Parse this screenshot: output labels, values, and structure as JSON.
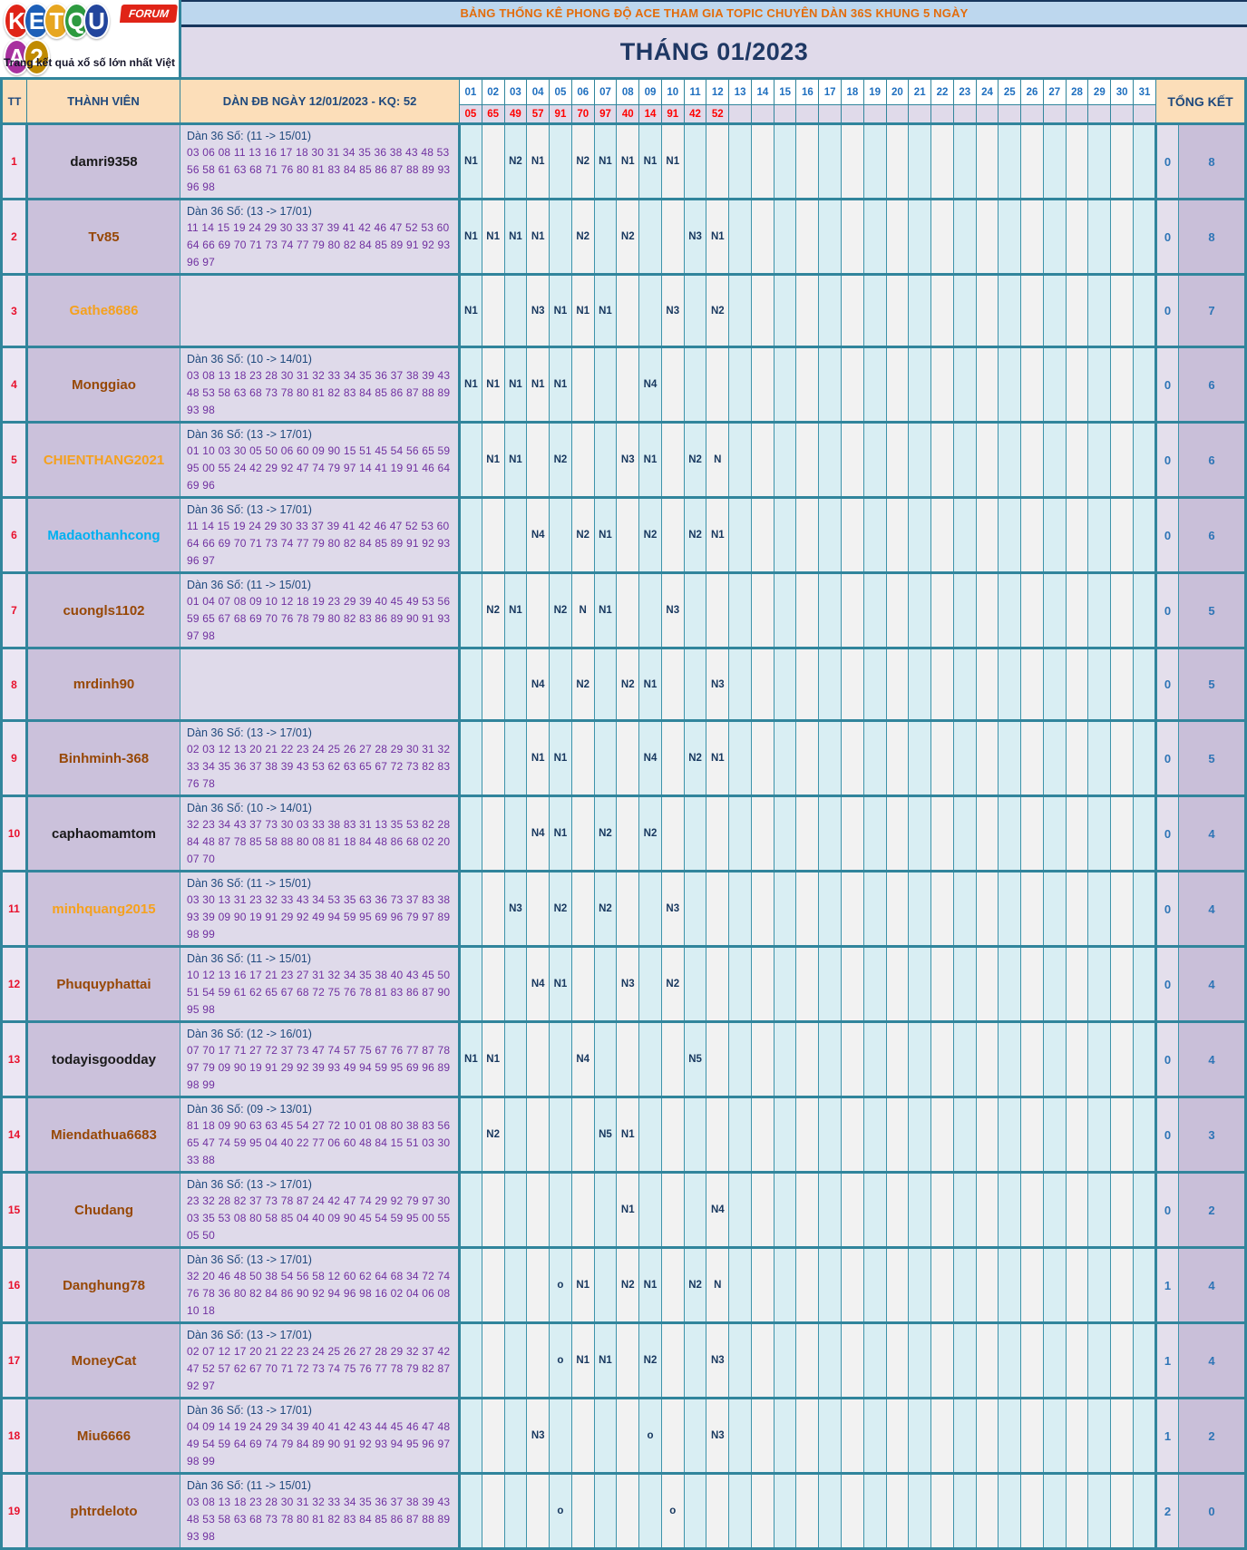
{
  "logo": {
    "letters": [
      {
        "ch": "K",
        "bg": "#e02417"
      },
      {
        "ch": "E",
        "bg": "#1d5fb8"
      },
      {
        "ch": "T",
        "bg": "#e7a620"
      },
      {
        "ch": "Q",
        "bg": "#2d9a3f"
      },
      {
        "ch": "U",
        "bg": "#23459c"
      },
      {
        "ch": "A",
        "bg": "#a8309f"
      },
      {
        "ch": "2",
        "bg": "#c08a00"
      }
    ],
    "forum": "FORUM",
    "tagline": "Trang kết quả xổ số lớn nhất Việt Nam"
  },
  "header": {
    "banner": "BẢNG THỐNG KÊ PHONG ĐỘ ACE THAM GIA TOPIC CHUYÊN DÀN 36S KHUNG 5 NGÀY",
    "month_title": "THÁNG 01/2023"
  },
  "colors": {
    "border_teal": "#31859C",
    "banner_bg": "#BDD7EE",
    "banner_text": "#E36C0A",
    "month_bg": "#E0DAEA",
    "month_text": "#1F3864",
    "header_peach": "#FCDEB9",
    "day_odd_bg": "#D9EEF3",
    "day_even_bg": "#F2F2F2",
    "result_red": "#FF0000",
    "mark_navy": "#17375E",
    "dan_purple": "#7030A0",
    "summary_blue": "#2E75B6"
  },
  "table": {
    "tt_header": "TT",
    "member_header": "THÀNH VIÊN",
    "dan_header": "DÀN ĐB NGÀY 12/01/2023 - KQ: 52",
    "summary_header": "TỔNG KẾT",
    "days": [
      "01",
      "02",
      "03",
      "04",
      "05",
      "06",
      "07",
      "08",
      "09",
      "10",
      "11",
      "12",
      "13",
      "14",
      "15",
      "16",
      "17",
      "18",
      "19",
      "20",
      "21",
      "22",
      "23",
      "24",
      "25",
      "26",
      "27",
      "28",
      "29",
      "30",
      "31"
    ],
    "day_results": [
      "05",
      "65",
      "49",
      "57",
      "91",
      "70",
      "97",
      "40",
      "14",
      "91",
      "42",
      "52"
    ],
    "rows": [
      {
        "tt": "1",
        "member": "damri9358",
        "member_color": "#1a1a1a",
        "dan_title": "Dàn 36 Số: (11 -> 15/01)",
        "dan_numbers": "03 06 08 11 13 16 17 18 30 31 34 35 36 38 43 48 53 56 58 61 63 68 71 76 80 81 83 84 85 86 87 88 89 93 96 98",
        "marks": {
          "1": "N1",
          "3": "N2",
          "4": "N1",
          "6": "N2",
          "7": "N1",
          "8": "N1",
          "9": "N1",
          "10": "N1"
        },
        "summary": [
          "0",
          "8"
        ]
      },
      {
        "tt": "2",
        "member": "Tv85",
        "member_color": "#974806",
        "dan_title": "Dàn 36 Số: (13 -> 17/01)",
        "dan_numbers": "11 14 15 19 24 29 30 33 37 39 41 42 46 47 52 53 60 64 66 69 70 71 73 74 77 79 80 82 84 85 89 91 92 93 96 97",
        "marks": {
          "1": "N1",
          "2": "N1",
          "3": "N1",
          "4": "N1",
          "6": "N2",
          "8": "N2",
          "11": "N3",
          "12": "N1"
        },
        "summary": [
          "0",
          "8"
        ]
      },
      {
        "tt": "3",
        "member": "Gathe8686",
        "member_color": "#F5A11D",
        "dan_title": "",
        "dan_numbers": "",
        "marks": {
          "1": "N1",
          "4": "N3",
          "5": "N1",
          "6": "N1",
          "7": "N1",
          "10": "N3",
          "12": "N2"
        },
        "summary": [
          "0",
          "7"
        ]
      },
      {
        "tt": "4",
        "member": "Monggiao",
        "member_color": "#974806",
        "dan_title": "Dàn 36 Số: (10 -> 14/01)",
        "dan_numbers": "03 08 13 18 23 28 30 31 32 33 34 35 36 37 38 39 43 48 53 58 63 68 73 78 80 81 82 83 84 85 86 87 88 89 93 98",
        "marks": {
          "1": "N1",
          "2": "N1",
          "3": "N1",
          "4": "N1",
          "5": "N1",
          "9": "N4"
        },
        "summary": [
          "0",
          "6"
        ]
      },
      {
        "tt": "5",
        "member": "CHIENTHANG2021",
        "member_color": "#F5A11D",
        "dan_title": "Dàn 36 Số: (13 -> 17/01)",
        "dan_numbers": "01 10 03 30 05 50 06 60 09 90 15 51 45 54 56 65 59 95 00 55 24 42 29 92 47 74 79 97 14 41 19 91 46 64 69 96",
        "marks": {
          "2": "N1",
          "3": "N1",
          "5": "N2",
          "8": "N3",
          "9": "N1",
          "11": "N2",
          "12": "N"
        },
        "summary": [
          "0",
          "6"
        ]
      },
      {
        "tt": "6",
        "member": "Madaothanhcong",
        "member_color": "#00B0F0",
        "dan_title": "Dàn 36 Số: (13 -> 17/01)",
        "dan_numbers": "11 14 15 19 24 29 30 33 37 39 41 42 46 47 52 53 60 64 66 69 70 71 73 74 77 79 80 82 84 85 89 91 92 93 96 97",
        "marks": {
          "4": "N4",
          "6": "N2",
          "7": "N1",
          "9": "N2",
          "11": "N2",
          "12": "N1"
        },
        "summary": [
          "0",
          "6"
        ]
      },
      {
        "tt": "7",
        "member": "cuongls1102",
        "member_color": "#974806",
        "dan_title": "Dàn 36 Số: (11 -> 15/01)",
        "dan_numbers": "01 04 07 08 09 10 12 18 19 23 29 39 40 45 49 53 56 59 65 67 68 69 70 76 78 79 80 82 83 86 89 90 91 93 97 98",
        "marks": {
          "2": "N2",
          "3": "N1",
          "5": "N2",
          "6": "N",
          "7": "N1",
          "10": "N3"
        },
        "summary": [
          "0",
          "5"
        ]
      },
      {
        "tt": "8",
        "member": "mrdinh90",
        "member_color": "#974806",
        "dan_title": "",
        "dan_numbers": "",
        "marks": {
          "4": "N4",
          "6": "N2",
          "8": "N2",
          "9": "N1",
          "12": "N3"
        },
        "summary": [
          "0",
          "5"
        ]
      },
      {
        "tt": "9",
        "member": "Binhminh-368",
        "member_color": "#974806",
        "dan_title": "Dàn 36 Số: (13 -> 17/01)",
        "dan_numbers": "02 03 12 13 20 21 22 23 24 25 26 27 28 29 30 31 32 33 34 35 36 37 38 39 43 53 62 63 65 67 72 73 82 83 76 78",
        "marks": {
          "4": "N1",
          "5": "N1",
          "9": "N4",
          "11": "N2",
          "12": "N1"
        },
        "summary": [
          "0",
          "5"
        ]
      },
      {
        "tt": "10",
        "member": "caphaomamtom",
        "member_color": "#1a1a1a",
        "dan_title": "Dàn 36 Số: (10 -> 14/01)",
        "dan_numbers": "32 23 34 43 37 73 30 03 33 38 83 31 13 35 53 82 28 84 48 87 78 85 58 88 80 08 81 18 84 48 86 68 02 20 07 70",
        "marks": {
          "4": "N4",
          "5": "N1",
          "7": "N2",
          "9": "N2"
        },
        "summary": [
          "0",
          "4"
        ]
      },
      {
        "tt": "11",
        "member": "minhquang2015",
        "member_color": "#F5A11D",
        "dan_title": "Dàn 36 Số: (11 -> 15/01)",
        "dan_numbers": "03 30 13 31 23 32 33 43 34 53 35 63 36 73 37 83 38 93 39 09 90 19 91 29 92 49 94 59 95 69 96 79 97 89 98 99",
        "marks": {
          "3": "N3",
          "5": "N2",
          "7": "N2",
          "10": "N3"
        },
        "summary": [
          "0",
          "4"
        ]
      },
      {
        "tt": "12",
        "member": "Phuquyphattai",
        "member_color": "#974806",
        "dan_title": "Dàn 36 Số: (11 -> 15/01)",
        "dan_numbers": "10 12 13 16 17 21 23 27 31 32 34 35 38 40 43 45 50 51 54 59 61 62 65 67 68 72 75 76 78 81 83 86 87 90 95 98",
        "marks": {
          "4": "N4",
          "5": "N1",
          "8": "N3",
          "10": "N2"
        },
        "summary": [
          "0",
          "4"
        ]
      },
      {
        "tt": "13",
        "member": "todayisgoodday",
        "member_color": "#1a1a1a",
        "dan_title": "Dàn 36 Số: (12 -> 16/01)",
        "dan_numbers": "07 70 17 71 27 72 37 73 47 74 57 75 67 76 77 87 78 97 79 09 90 19 91 29 92 39 93 49 94 59 95 69 96 89 98 99",
        "marks": {
          "1": "N1",
          "2": "N1",
          "6": "N4",
          "11": "N5"
        },
        "summary": [
          "0",
          "4"
        ]
      },
      {
        "tt": "14",
        "member": "Miendathua6683",
        "member_color": "#974806",
        "dan_title": "Dàn 36 Số: (09 -> 13/01)",
        "dan_numbers": "81 18 09 90 63 63 45 54 27 72 10 01 08 80 38 83 56 65 47 74 59 95 04 40 22 77 06 60 48 84 15 51 03 30 33 88",
        "marks": {
          "2": "N2",
          "7": "N5",
          "8": "N1"
        },
        "summary": [
          "0",
          "3"
        ]
      },
      {
        "tt": "15",
        "member": "Chudang",
        "member_color": "#974806",
        "dan_title": "Dàn 36 Số: (13 -> 17/01)",
        "dan_numbers": "23 32 28 82 37 73 78 87 24 42 47 74 29 92 79 97 30 03 35 53 08 80 58 85 04 40 09 90 45 54 59 95 00 55 05 50",
        "marks": {
          "8": "N1",
          "12": "N4"
        },
        "summary": [
          "0",
          "2"
        ]
      },
      {
        "tt": "16",
        "member": "Danghung78",
        "member_color": "#974806",
        "dan_title": "Dàn 36 Số: (13 -> 17/01)",
        "dan_numbers": "32 20 46 48 50 38 54 56 58 12 60 62 64 68 34 72 74 76 78 36 80 82 84 86 90 92 94 96 98 16 02 04 06 08 10 18",
        "marks": {
          "5": "o",
          "6": "N1",
          "8": "N2",
          "9": "N1",
          "11": "N2",
          "12": "N"
        },
        "summary": [
          "1",
          "4"
        ]
      },
      {
        "tt": "17",
        "member": "MoneyCat",
        "member_color": "#974806",
        "dan_title": "Dàn 36 Số: (13 -> 17/01)",
        "dan_numbers": "02 07 12 17 20 21 22 23 24 25 26 27 28 29 32 37 42 47 52 57 62 67 70 71 72 73 74 75 76 77 78 79 82 87 92 97",
        "marks": {
          "5": "o",
          "6": "N1",
          "7": "N1",
          "9": "N2",
          "12": "N3"
        },
        "summary": [
          "1",
          "4"
        ]
      },
      {
        "tt": "18",
        "member": "Miu6666",
        "member_color": "#974806",
        "dan_title": "Dàn 36 Số: (13 -> 17/01)",
        "dan_numbers": "04 09 14 19 24 29 34 39 40 41 42 43 44 45 46 47 48 49 54 59 64 69 74 79 84 89 90 91 92 93 94 95 96 97 98 99",
        "marks": {
          "4": "N3",
          "9": "o",
          "12": "N3"
        },
        "summary": [
          "1",
          "2"
        ]
      },
      {
        "tt": "19",
        "member": "phtrdeloto",
        "member_color": "#974806",
        "dan_title": "Dàn 36 Số: (11 -> 15/01)",
        "dan_numbers": "03 08 13 18 23 28 30 31 32 33 34 35 36 37 38 39 43 48 53 58 63 68 73 78 80 81 82 83 84 85 86 87 88 89 93 98",
        "marks": {
          "5": "o",
          "10": "o"
        },
        "summary": [
          "2",
          "0"
        ]
      }
    ]
  }
}
